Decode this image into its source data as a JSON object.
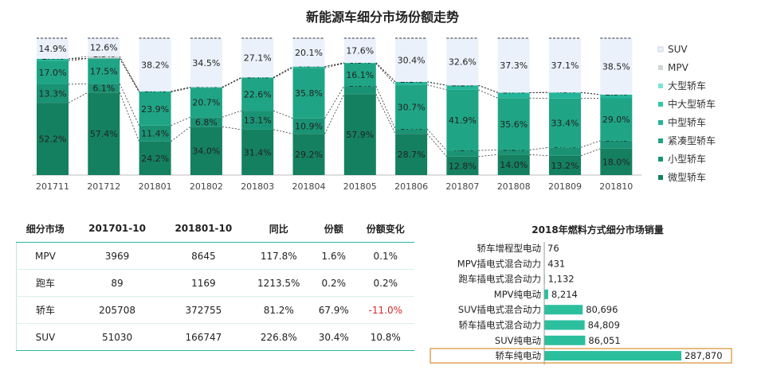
{
  "title": "新能源车细分市场份额走势",
  "colors": {
    "SUV": "#eaf1fb",
    "MPV": "#cfd4d6",
    "大型轿车": "#7fe3d8",
    "中大型轿车": "#2fc8ad",
    "中型轿车": "#24b59a",
    "紧凑型轿车": "#1fa585",
    "小型轿车": "#1a9374",
    "微型轿车": "#14805f",
    "hbar": "#2bbf9e",
    "highlight": "#e0a458",
    "negative": "#d62828"
  },
  "chart_data": [
    {
      "type": "bar",
      "stacked": true,
      "title": "新能源车细分市场份额走势",
      "categories": [
        "201711",
        "201712",
        "201801",
        "201802",
        "201803",
        "201804",
        "201805",
        "201806",
        "201807",
        "201808",
        "201809",
        "201810"
      ],
      "ylim": [
        0,
        100
      ],
      "legend_position": "right",
      "series": [
        {
          "name": "微型轿车",
          "values": [
            52.2,
            57.4,
            24.2,
            34.0,
            31.4,
            29.2,
            57.9,
            28.7,
            12.8,
            14.0,
            13.2,
            18.0
          ]
        },
        {
          "name": "小型轿车",
          "values": [
            13.3,
            6.1,
            11.4,
            6.8,
            13.1,
            10.9,
            5.8,
            3.4,
            4.2,
            3.2,
            5.7,
            5.4
          ]
        },
        {
          "name": "紧凑型轿车",
          "values": [
            17.0,
            17.5,
            23.9,
            20.7,
            22.6,
            35.8,
            16.1,
            30.7,
            41.9,
            35.6,
            33.4,
            29.0
          ]
        },
        {
          "name": "中型轿车",
          "values": [
            1.4,
            0.0,
            0.7,
            0.4,
            0.4,
            0.9,
            0.5,
            2.1,
            3.1,
            3.7,
            4.1,
            2.5
          ]
        },
        {
          "name": "中大型轿车",
          "values": [
            0,
            0,
            0,
            0,
            0,
            0,
            0,
            0,
            0,
            0,
            0,
            0
          ]
        },
        {
          "name": "大型轿车",
          "values": [
            0,
            0,
            0,
            0,
            0,
            0,
            0,
            0,
            0,
            0,
            0,
            0
          ]
        },
        {
          "name": "MPV",
          "values": [
            0.0,
            1.5,
            0,
            0,
            0,
            0,
            0,
            0,
            0,
            0,
            0,
            0
          ]
        },
        {
          "name": "SUV",
          "values": [
            14.9,
            12.6,
            38.2,
            34.5,
            27.1,
            20.1,
            17.6,
            30.4,
            32.6,
            37.3,
            37.1,
            38.5
          ]
        }
      ],
      "legend": [
        "SUV",
        "MPV",
        "大型轿车",
        "中大型轿车",
        "中型轿车",
        "紧凑型轿车",
        "小型轿车",
        "微型轿车"
      ]
    },
    {
      "type": "table",
      "headers": [
        "细分市场",
        "201701-10",
        "201801-10",
        "同比",
        "份额",
        "份额变化"
      ],
      "rows": [
        [
          "MPV",
          "3969",
          "8645",
          "117.8%",
          "1.6%",
          "0.1%"
        ],
        [
          "跑车",
          "89",
          "1169",
          "1213.5%",
          "0.2%",
          "0.2%"
        ],
        [
          "轿车",
          "205708",
          "372755",
          "81.2%",
          "67.9%",
          "-11.0%"
        ],
        [
          "SUV",
          "51030",
          "166747",
          "226.8%",
          "30.4%",
          "10.8%"
        ]
      ]
    },
    {
      "type": "bar",
      "orientation": "horizontal",
      "title": "2018年燃料方式细分市场销量",
      "categories": [
        "轿车增程型电动",
        "MPV插电式混合动力",
        "跑车插电式混合动力",
        "MPV纯电动",
        "SUV插电式混合动力",
        "轿车插电式混合动力",
        "SUV纯电动",
        "轿车纯电动"
      ],
      "values": [
        76,
        431,
        1132,
        8214,
        80696,
        84809,
        86051,
        287870
      ],
      "value_labels": [
        "76",
        "431",
        "1,132",
        "8,214",
        "80,696",
        "84,809",
        "86,051",
        "287,870"
      ],
      "highlighted": "轿车纯电动"
    }
  ]
}
